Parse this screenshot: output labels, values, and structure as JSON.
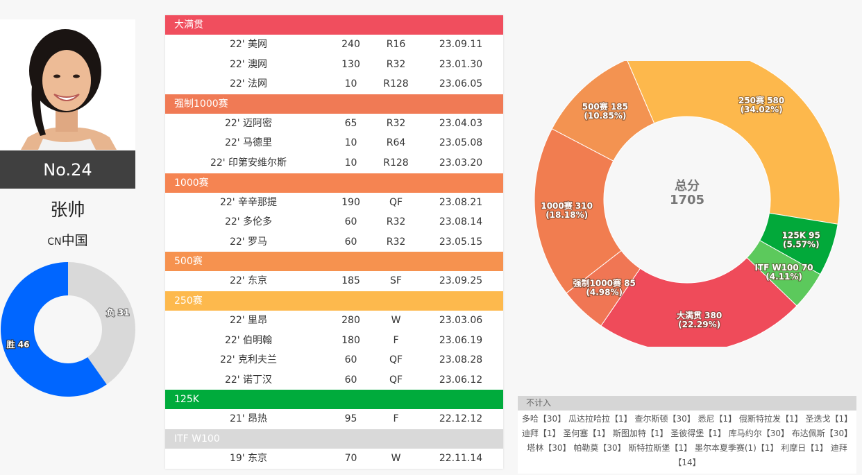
{
  "player": {
    "rank": "No.24",
    "name": "张帅",
    "country_code": "CN",
    "country": "中国"
  },
  "record": {
    "wins_label": "胜 46",
    "losses_label": "负 31",
    "wins": 46,
    "losses": 31,
    "colors": {
      "wins": "#0066ff",
      "losses": "#d9d9d9"
    }
  },
  "categories": [
    {
      "name": "大满贯",
      "color": "#f04e5e",
      "rows": [
        {
          "event": "22' 美网",
          "points": "240",
          "round": "R16",
          "date": "23.09.11"
        },
        {
          "event": "22' 澳网",
          "points": "130",
          "round": "R32",
          "date": "23.01.30"
        },
        {
          "event": "22' 法网",
          "points": "10",
          "round": "R128",
          "date": "23.06.05"
        }
      ]
    },
    {
      "name": "强制1000赛",
      "color": "#f07a55",
      "rows": [
        {
          "event": "22' 迈阿密",
          "points": "65",
          "round": "R32",
          "date": "23.04.03"
        },
        {
          "event": "22' 马德里",
          "points": "10",
          "round": "R64",
          "date": "23.05.08"
        },
        {
          "event": "22' 印第安维尔斯",
          "points": "10",
          "round": "R128",
          "date": "23.03.20"
        }
      ]
    },
    {
      "name": "1000赛",
      "color": "#f58452",
      "rows": [
        {
          "event": "22' 辛辛那提",
          "points": "190",
          "round": "QF",
          "date": "23.08.21"
        },
        {
          "event": "22' 多伦多",
          "points": "60",
          "round": "R32",
          "date": "23.08.14"
        },
        {
          "event": "22' 罗马",
          "points": "60",
          "round": "R32",
          "date": "23.05.15"
        }
      ]
    },
    {
      "name": "500赛",
      "color": "#f6924f",
      "rows": [
        {
          "event": "22' 东京",
          "points": "185",
          "round": "SF",
          "date": "23.09.25"
        }
      ]
    },
    {
      "name": "250赛",
      "color": "#fdb94d",
      "rows": [
        {
          "event": "22' 里昂",
          "points": "280",
          "round": "W",
          "date": "23.03.06"
        },
        {
          "event": "22' 伯明翰",
          "points": "180",
          "round": "F",
          "date": "23.06.19"
        },
        {
          "event": "22' 克利夫兰",
          "points": "60",
          "round": "QF",
          "date": "23.08.28"
        },
        {
          "event": "22' 诺丁汉",
          "points": "60",
          "round": "QF",
          "date": "23.06.12"
        }
      ]
    },
    {
      "name": "125K",
      "color": "#00ab3c",
      "rows": [
        {
          "event": "21' 昂热",
          "points": "95",
          "round": "F",
          "date": "22.12.12"
        }
      ]
    },
    {
      "name": "ITF W100",
      "color": "#d9d9d9",
      "rows": [
        {
          "event": "19' 东京",
          "points": "70",
          "round": "W",
          "date": "22.11.14"
        }
      ]
    }
  ],
  "chart_data": {
    "type": "pie",
    "center_title": "总分",
    "center_value": "1705",
    "slices": [
      {
        "label": "大满贯 380",
        "pct": "(22.29%)",
        "value": 380,
        "color": "#ef4b5a"
      },
      {
        "label": "强制1000赛 85",
        "pct": "(4.98%)",
        "value": 85,
        "color": "#f07654"
      },
      {
        "label": "1000赛 310",
        "pct": "(18.18%)",
        "value": 310,
        "color": "#f17d50"
      },
      {
        "label": "500赛 185",
        "pct": "(10.85%)",
        "value": 185,
        "color": "#f39351"
      },
      {
        "label": "250赛 580",
        "pct": "(34.02%)",
        "value": 580,
        "color": "#fdb84c"
      },
      {
        "label": "125K 95",
        "pct": "(5.57%)",
        "value": 95,
        "color": "#02a93a"
      },
      {
        "label": "ITF W100 70",
        "pct": "(4.11%)",
        "value": 70,
        "color": "#5cc95c"
      }
    ]
  },
  "not_counted": {
    "title": "不计入",
    "text": "多哈【30】 瓜达拉哈拉【1】 查尔斯顿【30】 悉尼【1】 俄斯特拉发【1】 圣迭戈【1】 迪拜【1】 圣何塞【1】 斯图加特【1】 圣彼得堡【1】 库马约尔【30】 布达佩斯【30】 塔林【30】 帕勒莫【30】 斯特拉斯堡【1】 墨尔本夏季赛(1)【1】 利摩日【1】 迪拜【14】"
  }
}
